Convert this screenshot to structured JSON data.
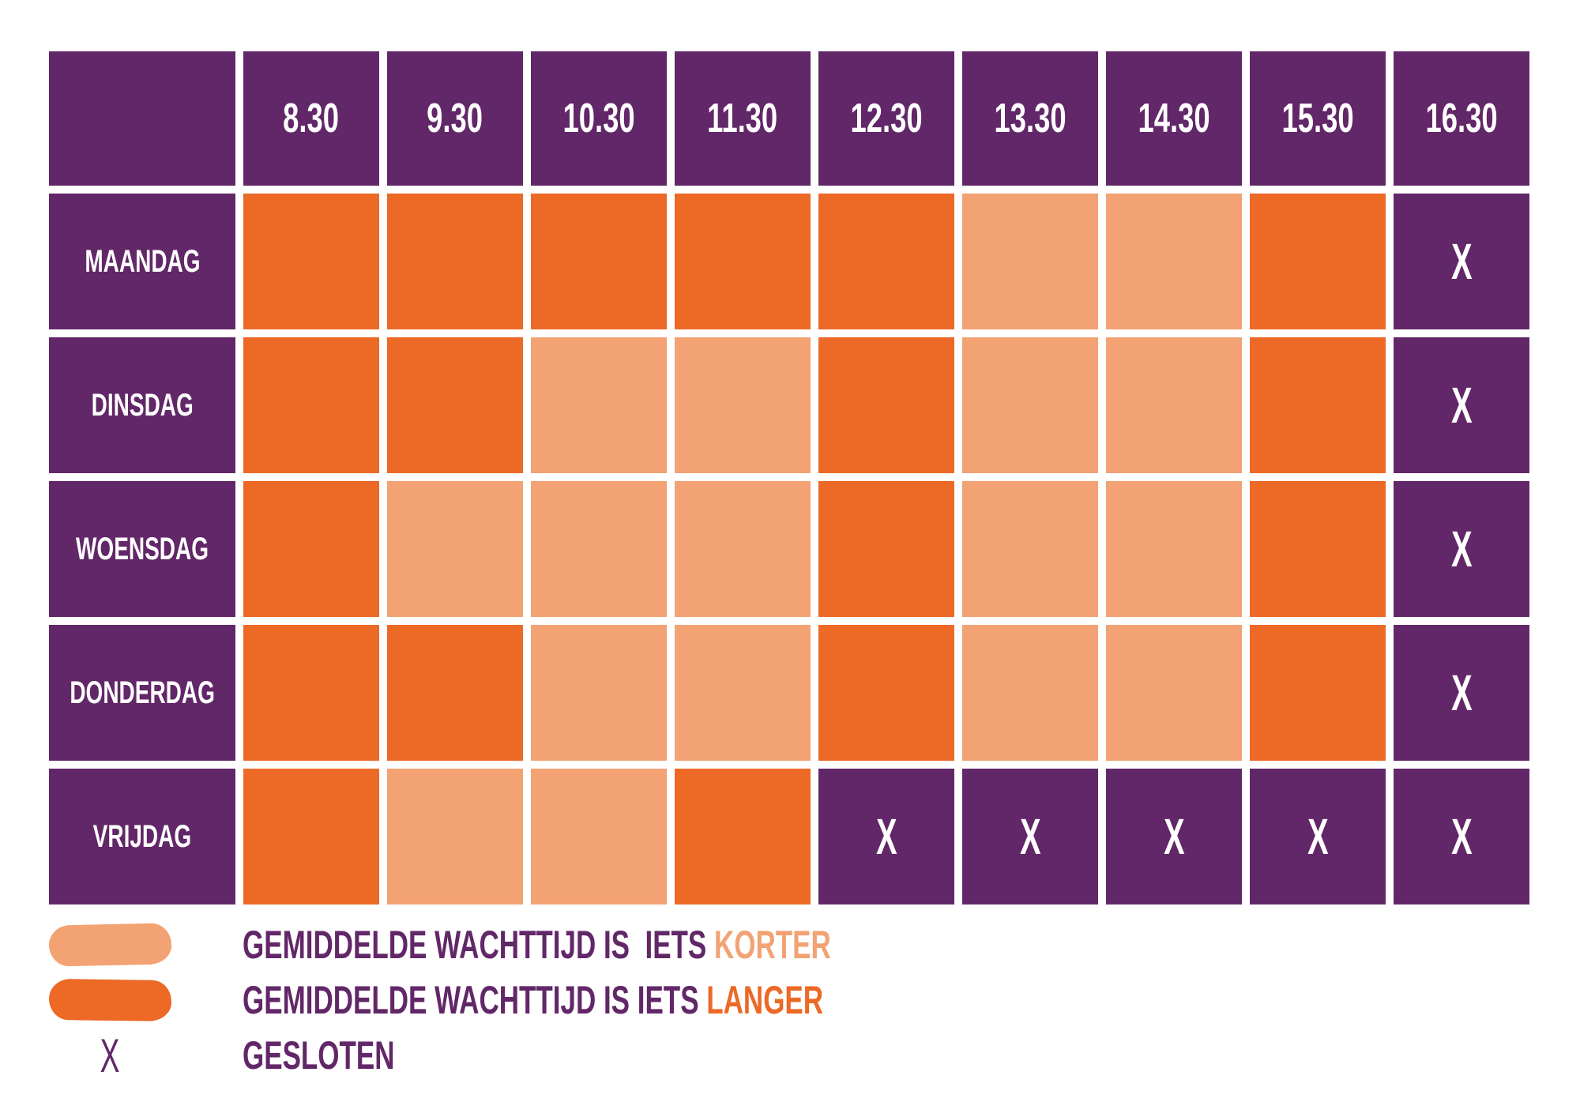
{
  "palette": {
    "purple": "#622768",
    "orange_dark": "#EC6926",
    "orange_light": "#F3A273",
    "text_on_purple": "#FFFFFF",
    "background": "#FFFFFF"
  },
  "chart_data": {
    "type": "heatmap",
    "title": "",
    "x_labels": [
      "8.30",
      "9.30",
      "10.30",
      "11.30",
      "12.30",
      "13.30",
      "14.30",
      "15.30",
      "16.30"
    ],
    "y_labels": [
      "MAANDAG",
      "DINSDAG",
      "WOENSDAG",
      "DONDERDAG",
      "VRIJDAG"
    ],
    "values": [
      [
        "langer",
        "langer",
        "langer",
        "langer",
        "langer",
        "korter",
        "korter",
        "langer",
        "gesloten"
      ],
      [
        "langer",
        "langer",
        "korter",
        "korter",
        "langer",
        "korter",
        "korter",
        "langer",
        "gesloten"
      ],
      [
        "langer",
        "korter",
        "korter",
        "korter",
        "langer",
        "korter",
        "korter",
        "langer",
        "gesloten"
      ],
      [
        "langer",
        "langer",
        "korter",
        "korter",
        "langer",
        "korter",
        "korter",
        "langer",
        "gesloten"
      ],
      [
        "langer",
        "korter",
        "korter",
        "langer",
        "gesloten",
        "gesloten",
        "gesloten",
        "gesloten",
        "gesloten"
      ]
    ],
    "closed_marker": "X",
    "categories_meaning": {
      "korter": {
        "label": "GEMIDDELDE WACHTTIJD IS IETS KORTER",
        "color": "#F3A273"
      },
      "langer": {
        "label": "GEMIDDELDE WACHTTIJD IS IETS LANGER",
        "color": "#EC6926"
      },
      "gesloten": {
        "label": "GESLOTEN",
        "color": "#622768",
        "marker": "X"
      }
    },
    "legend_position": "bottom-left",
    "grid": false
  },
  "legend": {
    "items": [
      {
        "swatch": "korter",
        "prefix": "GEMIDDELDE WACHTTIJD IS  IETS ",
        "highlight": "KORTER"
      },
      {
        "swatch": "langer",
        "prefix": "GEMIDDELDE WACHTTIJD IS IETS ",
        "highlight": "LANGER"
      },
      {
        "swatch": "gesloten",
        "marker": "X",
        "prefix": "GESLOTEN",
        "highlight": ""
      }
    ]
  }
}
